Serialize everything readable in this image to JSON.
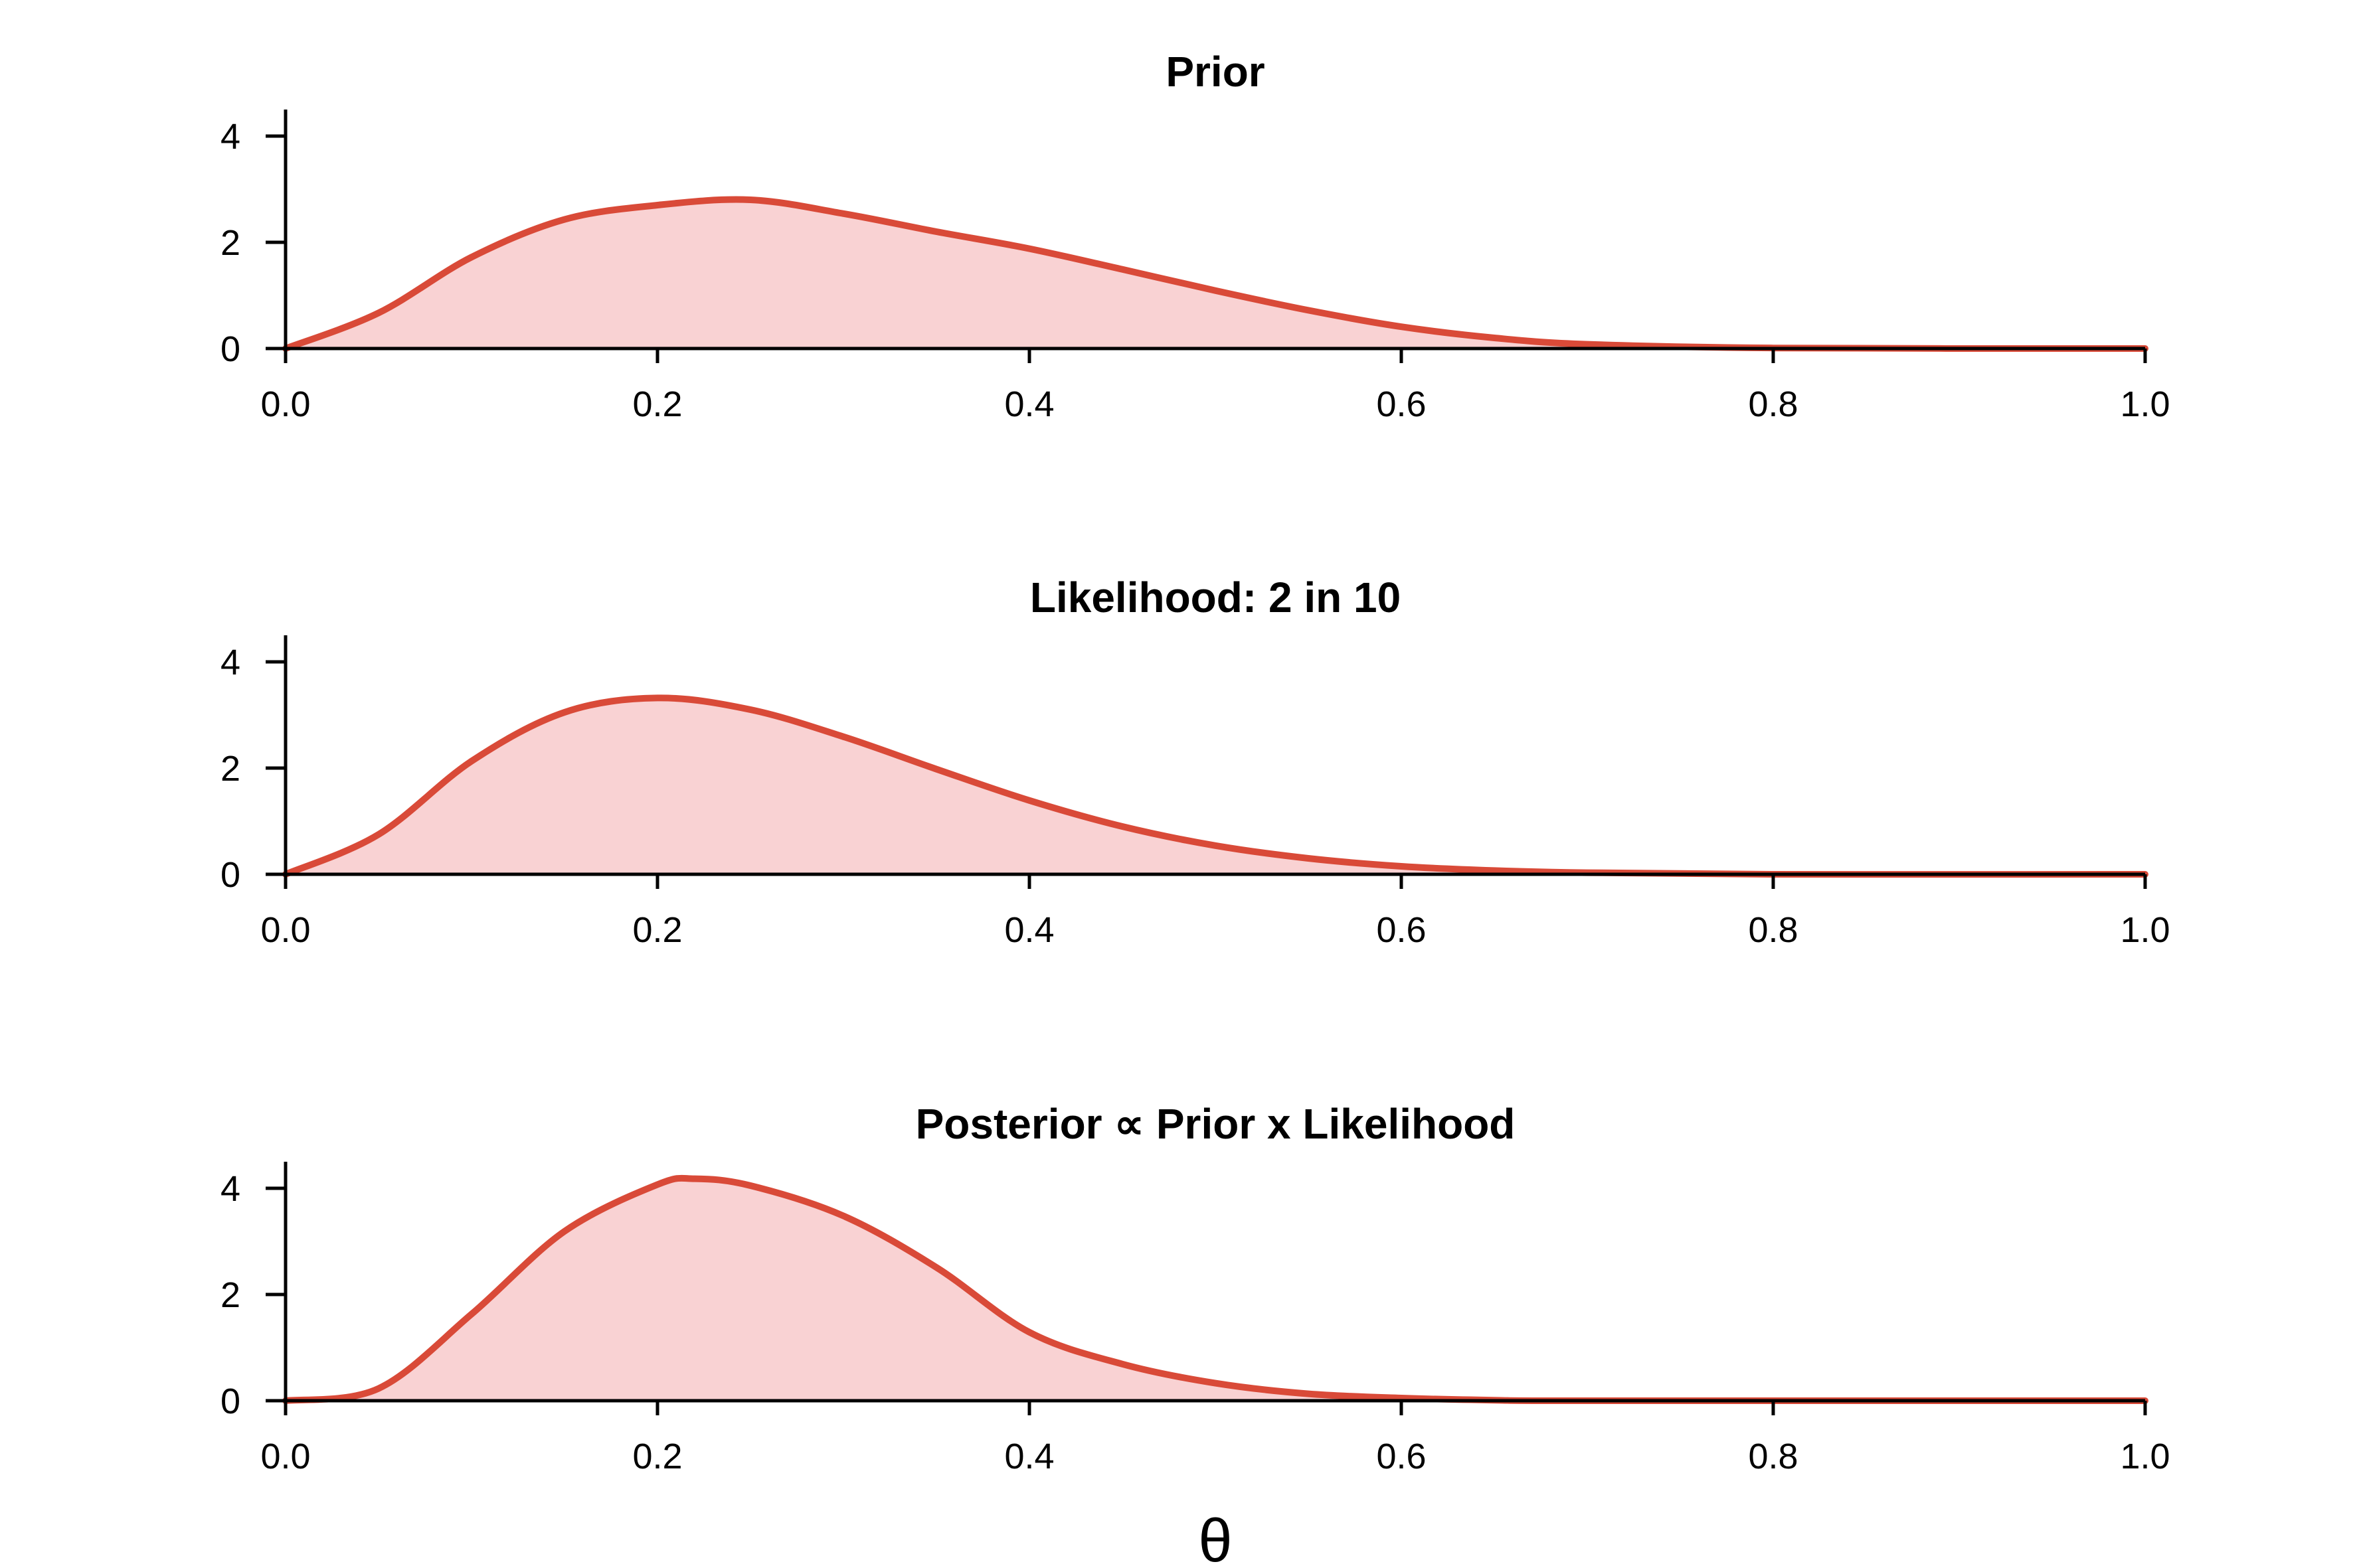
{
  "colors": {
    "line": "#d94a38",
    "fill": "#f9d2d3"
  },
  "xlabel": "θ",
  "chart_data": [
    {
      "type": "area",
      "title": "Prior",
      "distribution": "Beta(3, 7)",
      "x_ticks": [
        "0.0",
        "0.2",
        "0.4",
        "0.6",
        "0.8",
        "1.0"
      ],
      "y_ticks": [
        "0",
        "2",
        "4"
      ],
      "xlim": [
        0,
        1
      ],
      "ylim": [
        0,
        4.5
      ],
      "points": [
        {
          "x": 0.0,
          "y": 0.0
        },
        {
          "x": 0.05,
          "y": 0.67
        },
        {
          "x": 0.1,
          "y": 1.72
        },
        {
          "x": 0.15,
          "y": 2.43
        },
        {
          "x": 0.2,
          "y": 2.7
        },
        {
          "x": 0.25,
          "y": 2.8
        },
        {
          "x": 0.3,
          "y": 2.54
        },
        {
          "x": 0.35,
          "y": 2.2
        },
        {
          "x": 0.4,
          "y": 1.88
        },
        {
          "x": 0.45,
          "y": 1.49
        },
        {
          "x": 0.5,
          "y": 1.09
        },
        {
          "x": 0.55,
          "y": 0.72
        },
        {
          "x": 0.6,
          "y": 0.41
        },
        {
          "x": 0.65,
          "y": 0.2
        },
        {
          "x": 0.7,
          "y": 0.08
        },
        {
          "x": 0.8,
          "y": 0.01
        },
        {
          "x": 1.0,
          "y": 0.0
        }
      ]
    },
    {
      "type": "area",
      "title": "Likelihood: 2 in 10",
      "distribution": "Beta(3, 9)",
      "x_ticks": [
        "0.0",
        "0.2",
        "0.4",
        "0.6",
        "0.8",
        "1.0"
      ],
      "y_ticks": [
        "0",
        "2",
        "4"
      ],
      "xlim": [
        0,
        1
      ],
      "ylim": [
        0,
        4.5
      ],
      "points": [
        {
          "x": 0.0,
          "y": 0.0
        },
        {
          "x": 0.05,
          "y": 0.75
        },
        {
          "x": 0.1,
          "y": 2.13
        },
        {
          "x": 0.15,
          "y": 3.05
        },
        {
          "x": 0.2,
          "y": 3.32
        },
        {
          "x": 0.25,
          "y": 3.1
        },
        {
          "x": 0.3,
          "y": 2.59
        },
        {
          "x": 0.35,
          "y": 1.98
        },
        {
          "x": 0.4,
          "y": 1.39
        },
        {
          "x": 0.45,
          "y": 0.9
        },
        {
          "x": 0.5,
          "y": 0.54
        },
        {
          "x": 0.55,
          "y": 0.3
        },
        {
          "x": 0.6,
          "y": 0.15
        },
        {
          "x": 0.65,
          "y": 0.07
        },
        {
          "x": 0.7,
          "y": 0.03
        },
        {
          "x": 0.8,
          "y": 0.0
        },
        {
          "x": 1.0,
          "y": 0.0
        }
      ]
    },
    {
      "type": "area",
      "title": "Posterior ∝ Prior x Likelihood",
      "distribution": "Beta(5, 15)",
      "x_ticks": [
        "0.0",
        "0.2",
        "0.4",
        "0.6",
        "0.8",
        "1.0"
      ],
      "y_ticks": [
        "0",
        "2",
        "4"
      ],
      "xlim": [
        0,
        1
      ],
      "ylim": [
        0,
        4.5
      ],
      "points": [
        {
          "x": 0.0,
          "y": 0.0
        },
        {
          "x": 0.05,
          "y": 0.23
        },
        {
          "x": 0.1,
          "y": 1.63
        },
        {
          "x": 0.15,
          "y": 3.19
        },
        {
          "x": 0.2,
          "y": 4.07
        },
        {
          "x": 0.22,
          "y": 4.18
        },
        {
          "x": 0.25,
          "y": 4.05
        },
        {
          "x": 0.3,
          "y": 3.48
        },
        {
          "x": 0.35,
          "y": 2.51
        },
        {
          "x": 0.4,
          "y": 1.29
        },
        {
          "x": 0.45,
          "y": 0.69
        },
        {
          "x": 0.5,
          "y": 0.33
        },
        {
          "x": 0.55,
          "y": 0.13
        },
        {
          "x": 0.6,
          "y": 0.05
        },
        {
          "x": 0.65,
          "y": 0.01
        },
        {
          "x": 0.7,
          "y": 0.0
        },
        {
          "x": 1.0,
          "y": 0.0
        }
      ]
    }
  ]
}
